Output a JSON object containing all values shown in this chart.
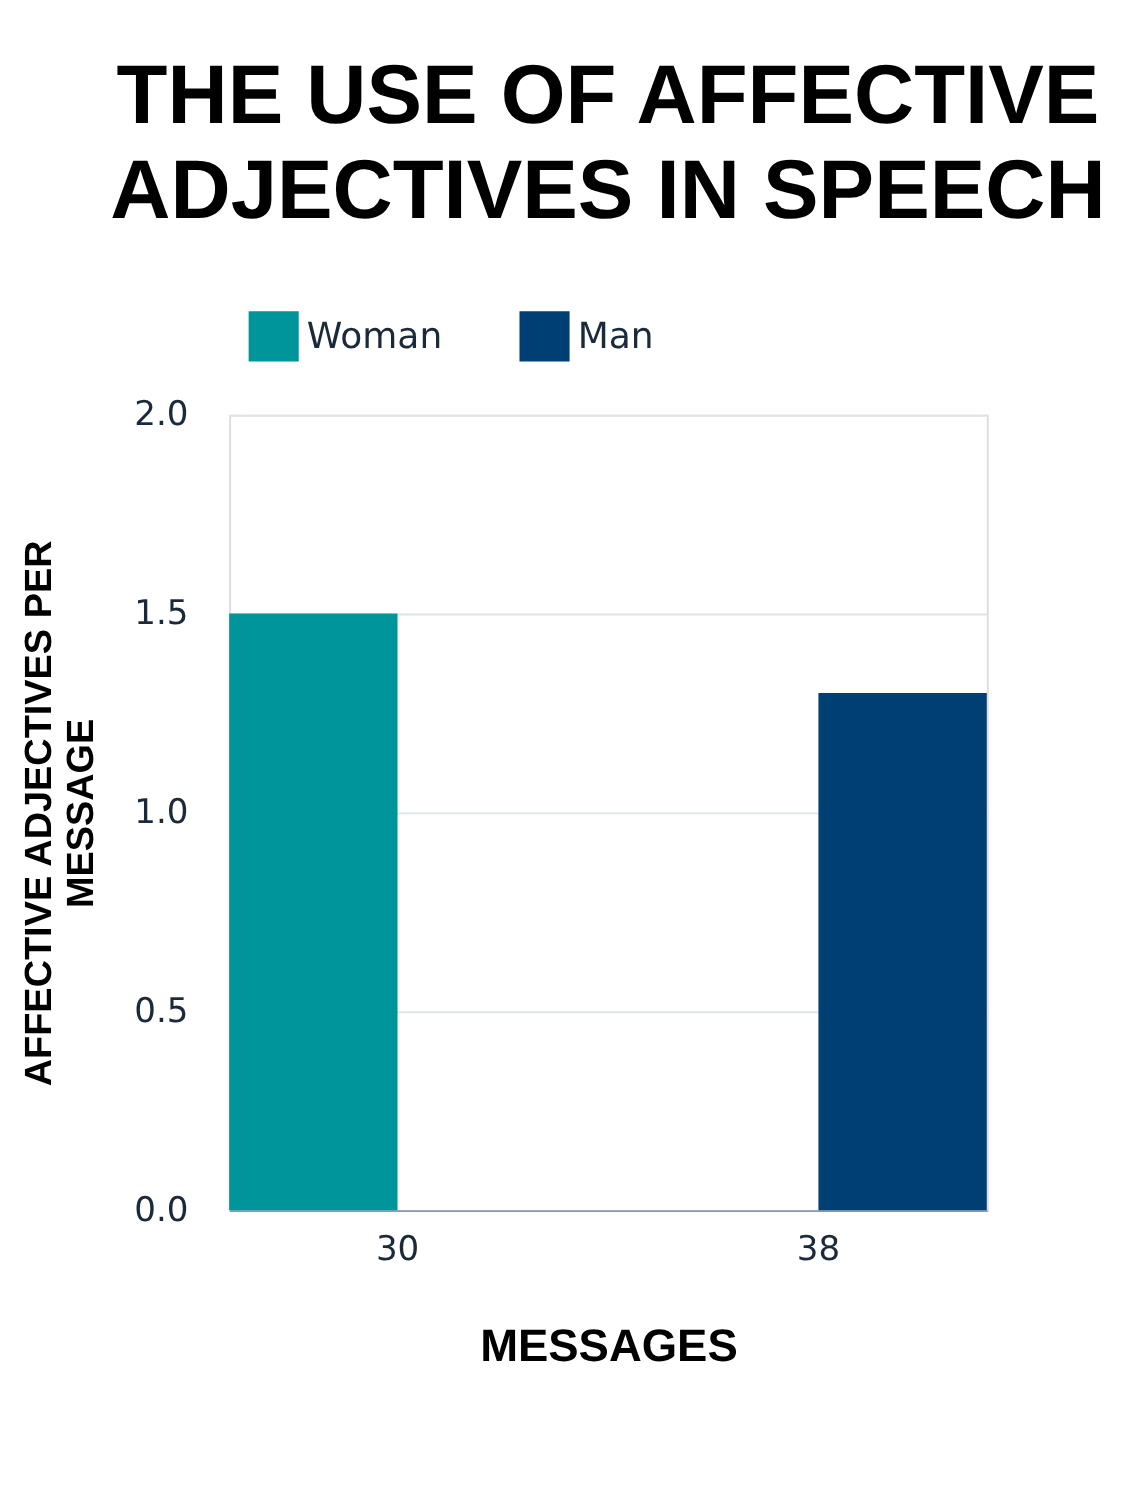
{
  "chart_data": {
    "type": "bar",
    "title": "THE USE OF AFFECTIVE ADJECTIVES IN SPEECH",
    "xlabel": "MESSAGES",
    "ylabel": "AFFECTIVE ADJECTIVES PER MESSAGE",
    "categories": [
      "30",
      "38"
    ],
    "series": [
      {
        "name": "Woman",
        "color": "#00959a",
        "values": [
          1.5,
          null
        ]
      },
      {
        "name": "Man",
        "color": "#003f73",
        "values": [
          null,
          1.3
        ]
      }
    ],
    "ylim": [
      0,
      2.0
    ],
    "yticks": [
      {
        "value": 0,
        "label": "0.0"
      },
      {
        "value": 0.5,
        "label": "0.5"
      },
      {
        "value": 1,
        "label": "1.0"
      },
      {
        "value": 1.5,
        "label": "1.5"
      },
      {
        "value": 2,
        "label": "2.0"
      }
    ],
    "grid": "y",
    "legend": "top"
  }
}
